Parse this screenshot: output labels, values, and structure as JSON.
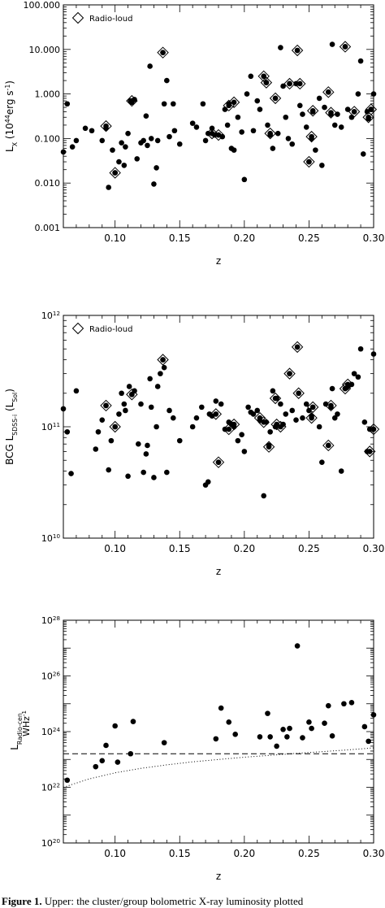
{
  "chart_data": [
    {
      "type": "scatter",
      "xlabel": "z",
      "ylabel": "L_X (10^44 erg s^-1)",
      "xlim": [
        0.06,
        0.3
      ],
      "ylim": [
        0.001,
        100
      ],
      "yscale": "log",
      "xticks": [
        "0.10",
        "0.15",
        "0.20",
        "0.25",
        "0.30"
      ],
      "yticks": [
        "0.001",
        "0.010",
        "0.100",
        "1.000",
        "10.000",
        "100.000"
      ],
      "legend": {
        "label": "Radio-loud",
        "position": "top-left",
        "marker": "open-diamond"
      },
      "points": [
        [
          0.06,
          0.05
        ],
        [
          0.063,
          0.6
        ],
        [
          0.067,
          0.065
        ],
        [
          0.07,
          0.09
        ],
        [
          0.077,
          0.17
        ],
        [
          0.082,
          0.15
        ],
        [
          0.09,
          0.09
        ],
        [
          0.093,
          0.17
        ],
        [
          0.095,
          0.008
        ],
        [
          0.098,
          0.055
        ],
        [
          0.1,
          0.017
        ],
        [
          0.103,
          0.03
        ],
        [
          0.105,
          0.08
        ],
        [
          0.107,
          0.025
        ],
        [
          0.108,
          0.065
        ],
        [
          0.11,
          0.13
        ],
        [
          0.112,
          0.7
        ],
        [
          0.113,
          0.65
        ],
        [
          0.115,
          0.75
        ],
        [
          0.117,
          0.035
        ],
        [
          0.12,
          0.08
        ],
        [
          0.122,
          0.09
        ],
        [
          0.124,
          0.32
        ],
        [
          0.125,
          0.07
        ],
        [
          0.127,
          4.2
        ],
        [
          0.128,
          0.1
        ],
        [
          0.13,
          0.0095
        ],
        [
          0.132,
          0.022
        ],
        [
          0.133,
          0.09
        ],
        [
          0.137,
          8.5
        ],
        [
          0.138,
          0.6
        ],
        [
          0.14,
          2.0
        ],
        [
          0.142,
          0.11
        ],
        [
          0.145,
          0.6
        ],
        [
          0.146,
          0.15
        ],
        [
          0.15,
          0.075
        ],
        [
          0.16,
          0.22
        ],
        [
          0.163,
          0.18
        ],
        [
          0.168,
          0.6
        ],
        [
          0.17,
          0.09
        ],
        [
          0.172,
          0.13
        ],
        [
          0.175,
          0.17
        ],
        [
          0.177,
          0.12
        ],
        [
          0.18,
          0.12
        ],
        [
          0.183,
          0.11
        ],
        [
          0.185,
          0.45
        ],
        [
          0.187,
          0.2
        ],
        [
          0.188,
          0.6
        ],
        [
          0.19,
          0.06
        ],
        [
          0.192,
          0.055
        ],
        [
          0.195,
          0.3
        ],
        [
          0.198,
          0.14
        ],
        [
          0.2,
          0.012
        ],
        [
          0.202,
          1.0
        ],
        [
          0.205,
          2.5
        ],
        [
          0.207,
          0.15
        ],
        [
          0.21,
          0.7
        ],
        [
          0.212,
          0.45
        ],
        [
          0.215,
          2.5
        ],
        [
          0.217,
          1.8
        ],
        [
          0.218,
          0.2
        ],
        [
          0.22,
          0.12
        ],
        [
          0.222,
          0.06
        ],
        [
          0.224,
          0.8
        ],
        [
          0.226,
          0.13
        ],
        [
          0.228,
          11.0
        ],
        [
          0.23,
          1.5
        ],
        [
          0.232,
          0.3
        ],
        [
          0.234,
          0.1
        ],
        [
          0.235,
          1.7
        ],
        [
          0.237,
          0.075
        ],
        [
          0.24,
          1.7
        ],
        [
          0.241,
          9.5
        ],
        [
          0.243,
          0.55
        ],
        [
          0.245,
          0.35
        ],
        [
          0.248,
          0.18
        ],
        [
          0.25,
          0.03
        ],
        [
          0.252,
          0.1
        ],
        [
          0.253,
          0.4
        ],
        [
          0.255,
          0.055
        ],
        [
          0.258,
          0.8
        ],
        [
          0.26,
          0.025
        ],
        [
          0.262,
          0.5
        ],
        [
          0.265,
          1.1
        ],
        [
          0.267,
          0.35
        ],
        [
          0.268,
          13.0
        ],
        [
          0.27,
          0.2
        ],
        [
          0.272,
          0.35
        ],
        [
          0.275,
          0.18
        ],
        [
          0.278,
          11.5
        ],
        [
          0.28,
          0.45
        ],
        [
          0.283,
          0.3
        ],
        [
          0.285,
          0.4
        ],
        [
          0.288,
          1.0
        ],
        [
          0.29,
          5.5
        ],
        [
          0.292,
          0.045
        ],
        [
          0.295,
          0.4
        ],
        [
          0.296,
          0.28
        ],
        [
          0.298,
          0.45
        ],
        [
          0.3,
          1.0
        ]
      ],
      "radio_loud": [
        [
          0.093,
          0.19
        ],
        [
          0.1,
          0.017
        ],
        [
          0.113,
          0.7
        ],
        [
          0.137,
          8.5
        ],
        [
          0.175,
          0.13
        ],
        [
          0.18,
          0.12
        ],
        [
          0.188,
          0.55
        ],
        [
          0.192,
          0.65
        ],
        [
          0.215,
          2.5
        ],
        [
          0.217,
          1.8
        ],
        [
          0.22,
          0.13
        ],
        [
          0.224,
          0.8
        ],
        [
          0.235,
          1.7
        ],
        [
          0.241,
          9.5
        ],
        [
          0.243,
          1.7
        ],
        [
          0.25,
          0.03
        ],
        [
          0.252,
          0.11
        ],
        [
          0.253,
          0.42
        ],
        [
          0.265,
          1.1
        ],
        [
          0.267,
          0.38
        ],
        [
          0.278,
          11.5
        ],
        [
          0.285,
          0.4
        ],
        [
          0.296,
          0.3
        ],
        [
          0.298,
          0.45
        ]
      ]
    },
    {
      "type": "scatter",
      "xlabel": "z",
      "ylabel": "BCG L_SDSS-i (L_Sol)",
      "xlim": [
        0.06,
        0.3
      ],
      "ylim": [
        10000000000.0,
        1000000000000.0
      ],
      "yscale": "log",
      "xticks": [
        "0.10",
        "0.15",
        "0.20",
        "0.25",
        "0.30"
      ],
      "yticks": [
        "10",
        "11",
        "12"
      ],
      "legend": {
        "label": "Radio-loud",
        "position": "top-left",
        "marker": "open-diamond"
      },
      "points": [
        [
          0.06,
          145000000000.0
        ],
        [
          0.063,
          90000000000.0
        ],
        [
          0.066,
          38000000000.0
        ],
        [
          0.07,
          210000000000.0
        ],
        [
          0.085,
          63000000000.0
        ],
        [
          0.087,
          90000000000.0
        ],
        [
          0.09,
          115000000000.0
        ],
        [
          0.093,
          155000000000.0
        ],
        [
          0.095,
          41000000000.0
        ],
        [
          0.097,
          75000000000.0
        ],
        [
          0.1,
          100000000000.0
        ],
        [
          0.103,
          130000000000.0
        ],
        [
          0.105,
          200000000000.0
        ],
        [
          0.107,
          160000000000.0
        ],
        [
          0.108,
          140000000000.0
        ],
        [
          0.11,
          36000000000.0
        ],
        [
          0.111,
          230000000000.0
        ],
        [
          0.113,
          195000000000.0
        ],
        [
          0.115,
          210000000000.0
        ],
        [
          0.118,
          70000000000.0
        ],
        [
          0.12,
          160000000000.0
        ],
        [
          0.122,
          39000000000.0
        ],
        [
          0.124,
          57000000000.0
        ],
        [
          0.125,
          68000000000.0
        ],
        [
          0.127,
          270000000000.0
        ],
        [
          0.128,
          150000000000.0
        ],
        [
          0.13,
          35000000000.0
        ],
        [
          0.132,
          100000000000.0
        ],
        [
          0.133,
          230000000000.0
        ],
        [
          0.135,
          300000000000.0
        ],
        [
          0.137,
          400000000000.0
        ],
        [
          0.138,
          340000000000.0
        ],
        [
          0.14,
          39000000000.0
        ],
        [
          0.142,
          140000000000.0
        ],
        [
          0.145,
          120000000000.0
        ],
        [
          0.15,
          75000000000.0
        ],
        [
          0.16,
          100000000000.0
        ],
        [
          0.163,
          120000000000.0
        ],
        [
          0.167,
          150000000000.0
        ],
        [
          0.17,
          30000000000.0
        ],
        [
          0.172,
          32000000000.0
        ],
        [
          0.173,
          130000000000.0
        ],
        [
          0.175,
          125000000000.0
        ],
        [
          0.178,
          170000000000.0
        ],
        [
          0.18,
          48000000000.0
        ],
        [
          0.182,
          160000000000.0
        ],
        [
          0.185,
          95000000000.0
        ],
        [
          0.188,
          110000000000.0
        ],
        [
          0.19,
          105000000000.0
        ],
        [
          0.192,
          100000000000.0
        ],
        [
          0.195,
          75000000000.0
        ],
        [
          0.198,
          85000000000.0
        ],
        [
          0.2,
          60000000000.0
        ],
        [
          0.203,
          150000000000.0
        ],
        [
          0.205,
          135000000000.0
        ],
        [
          0.207,
          130000000000.0
        ],
        [
          0.21,
          140000000000.0
        ],
        [
          0.212,
          115000000000.0
        ],
        [
          0.215,
          24000000000.0
        ],
        [
          0.217,
          110000000000.0
        ],
        [
          0.219,
          68000000000.0
        ],
        [
          0.22,
          90000000000.0
        ],
        [
          0.222,
          210000000000.0
        ],
        [
          0.224,
          100000000000.0
        ],
        [
          0.225,
          180000000000.0
        ],
        [
          0.228,
          160000000000.0
        ],
        [
          0.23,
          105000000000.0
        ],
        [
          0.232,
          130000000000.0
        ],
        [
          0.235,
          300000000000.0
        ],
        [
          0.237,
          140000000000.0
        ],
        [
          0.24,
          115000000000.0
        ],
        [
          0.241,
          520000000000.0
        ],
        [
          0.242,
          200000000000.0
        ],
        [
          0.245,
          120000000000.0
        ],
        [
          0.248,
          160000000000.0
        ],
        [
          0.25,
          140000000000.0
        ],
        [
          0.252,
          125000000000.0
        ],
        [
          0.253,
          150000000000.0
        ],
        [
          0.258,
          100000000000.0
        ],
        [
          0.26,
          48000000000.0
        ],
        [
          0.263,
          160000000000.0
        ],
        [
          0.265,
          68000000000.0
        ],
        [
          0.267,
          150000000000.0
        ],
        [
          0.268,
          220000000000.0
        ],
        [
          0.27,
          120000000000.0
        ],
        [
          0.272,
          130000000000.0
        ],
        [
          0.275,
          40000000000.0
        ],
        [
          0.278,
          220000000000.0
        ],
        [
          0.28,
          230000000000.0
        ],
        [
          0.283,
          240000000000.0
        ],
        [
          0.285,
          300000000000.0
        ],
        [
          0.288,
          280000000000.0
        ],
        [
          0.29,
          500000000000.0
        ],
        [
          0.293,
          110000000000.0
        ],
        [
          0.295,
          60000000000.0
        ],
        [
          0.297,
          95000000000.0
        ],
        [
          0.3,
          450000000000.0
        ]
      ],
      "radio_loud": [
        [
          0.093,
          155000000000.0
        ],
        [
          0.1,
          100000000000.0
        ],
        [
          0.113,
          195000000000.0
        ],
        [
          0.137,
          400000000000.0
        ],
        [
          0.178,
          130000000000.0
        ],
        [
          0.18,
          48000000000.0
        ],
        [
          0.188,
          95000000000.0
        ],
        [
          0.192,
          105000000000.0
        ],
        [
          0.212,
          120000000000.0
        ],
        [
          0.215,
          110000000000.0
        ],
        [
          0.219,
          66000000000.0
        ],
        [
          0.224,
          180000000000.0
        ],
        [
          0.225,
          105000000000.0
        ],
        [
          0.228,
          100000000000.0
        ],
        [
          0.235,
          300000000000.0
        ],
        [
          0.241,
          520000000000.0
        ],
        [
          0.242,
          200000000000.0
        ],
        [
          0.252,
          120000000000.0
        ],
        [
          0.253,
          150000000000.0
        ],
        [
          0.265,
          68000000000.0
        ],
        [
          0.267,
          155000000000.0
        ],
        [
          0.278,
          220000000000.0
        ],
        [
          0.28,
          240000000000.0
        ],
        [
          0.297,
          60000000000.0
        ],
        [
          0.3,
          95000000000.0
        ]
      ]
    },
    {
      "type": "scatter",
      "xlabel": "z",
      "ylabel": "L_Radio-cen WHz^-1",
      "xlim": [
        0.06,
        0.3
      ],
      "ylim": [
        1e+20,
        1e+28
      ],
      "yscale": "log",
      "xticks": [
        "0.10",
        "0.15",
        "0.20",
        "0.25",
        "0.30"
      ],
      "yticks": [
        "20",
        "22",
        "24",
        "26",
        "28"
      ],
      "points": [
        [
          0.063,
          1.8e+22
        ],
        [
          0.085,
          5.5e+22
        ],
        [
          0.09,
          9e+22
        ],
        [
          0.093,
          3.2e+23
        ],
        [
          0.1,
          1.6e+24
        ],
        [
          0.102,
          8e+22
        ],
        [
          0.112,
          1.6e+23
        ],
        [
          0.114,
          2.3e+24
        ],
        [
          0.138,
          4e+23
        ],
        [
          0.178,
          5.5e+23
        ],
        [
          0.182,
          7e+24
        ],
        [
          0.188,
          2.2e+24
        ],
        [
          0.193,
          8e+23
        ],
        [
          0.212,
          6.5e+23
        ],
        [
          0.218,
          4.5e+24
        ],
        [
          0.22,
          6.5e+23
        ],
        [
          0.225,
          3e+23
        ],
        [
          0.23,
          1.2e+24
        ],
        [
          0.233,
          6.5e+23
        ],
        [
          0.235,
          1.3e+24
        ],
        [
          0.241,
          1.2e+27
        ],
        [
          0.245,
          6e+23
        ],
        [
          0.25,
          2.2e+24
        ],
        [
          0.252,
          1.3e+24
        ],
        [
          0.262,
          2e+24
        ],
        [
          0.265,
          8.5e+24
        ],
        [
          0.268,
          7e+23
        ],
        [
          0.277,
          1e+25
        ],
        [
          0.283,
          1.1e+25
        ],
        [
          0.293,
          1.5e+24
        ],
        [
          0.296,
          4.5e+23
        ],
        [
          0.3,
          4e+24
        ]
      ],
      "dashed_line": 1.6e+23,
      "dotted_curve": [
        [
          0.06,
          1e+22
        ],
        [
          0.08,
          2e+22
        ],
        [
          0.1,
          3.3e+22
        ],
        [
          0.12,
          4.8e+22
        ],
        [
          0.14,
          6.4e+22
        ],
        [
          0.16,
          8.2e+22
        ],
        [
          0.18,
          1e+23
        ],
        [
          0.2,
          1.2e+23
        ],
        [
          0.22,
          1.4e+23
        ],
        [
          0.24,
          1.65e+23
        ],
        [
          0.26,
          1.9e+23
        ],
        [
          0.28,
          2.2e+23
        ],
        [
          0.3,
          2.6e+23
        ]
      ]
    }
  ],
  "caption": {
    "label": "Figure 1.",
    "text": " Upper: the cluster/group bolometric X-ray luminosity plotted"
  }
}
